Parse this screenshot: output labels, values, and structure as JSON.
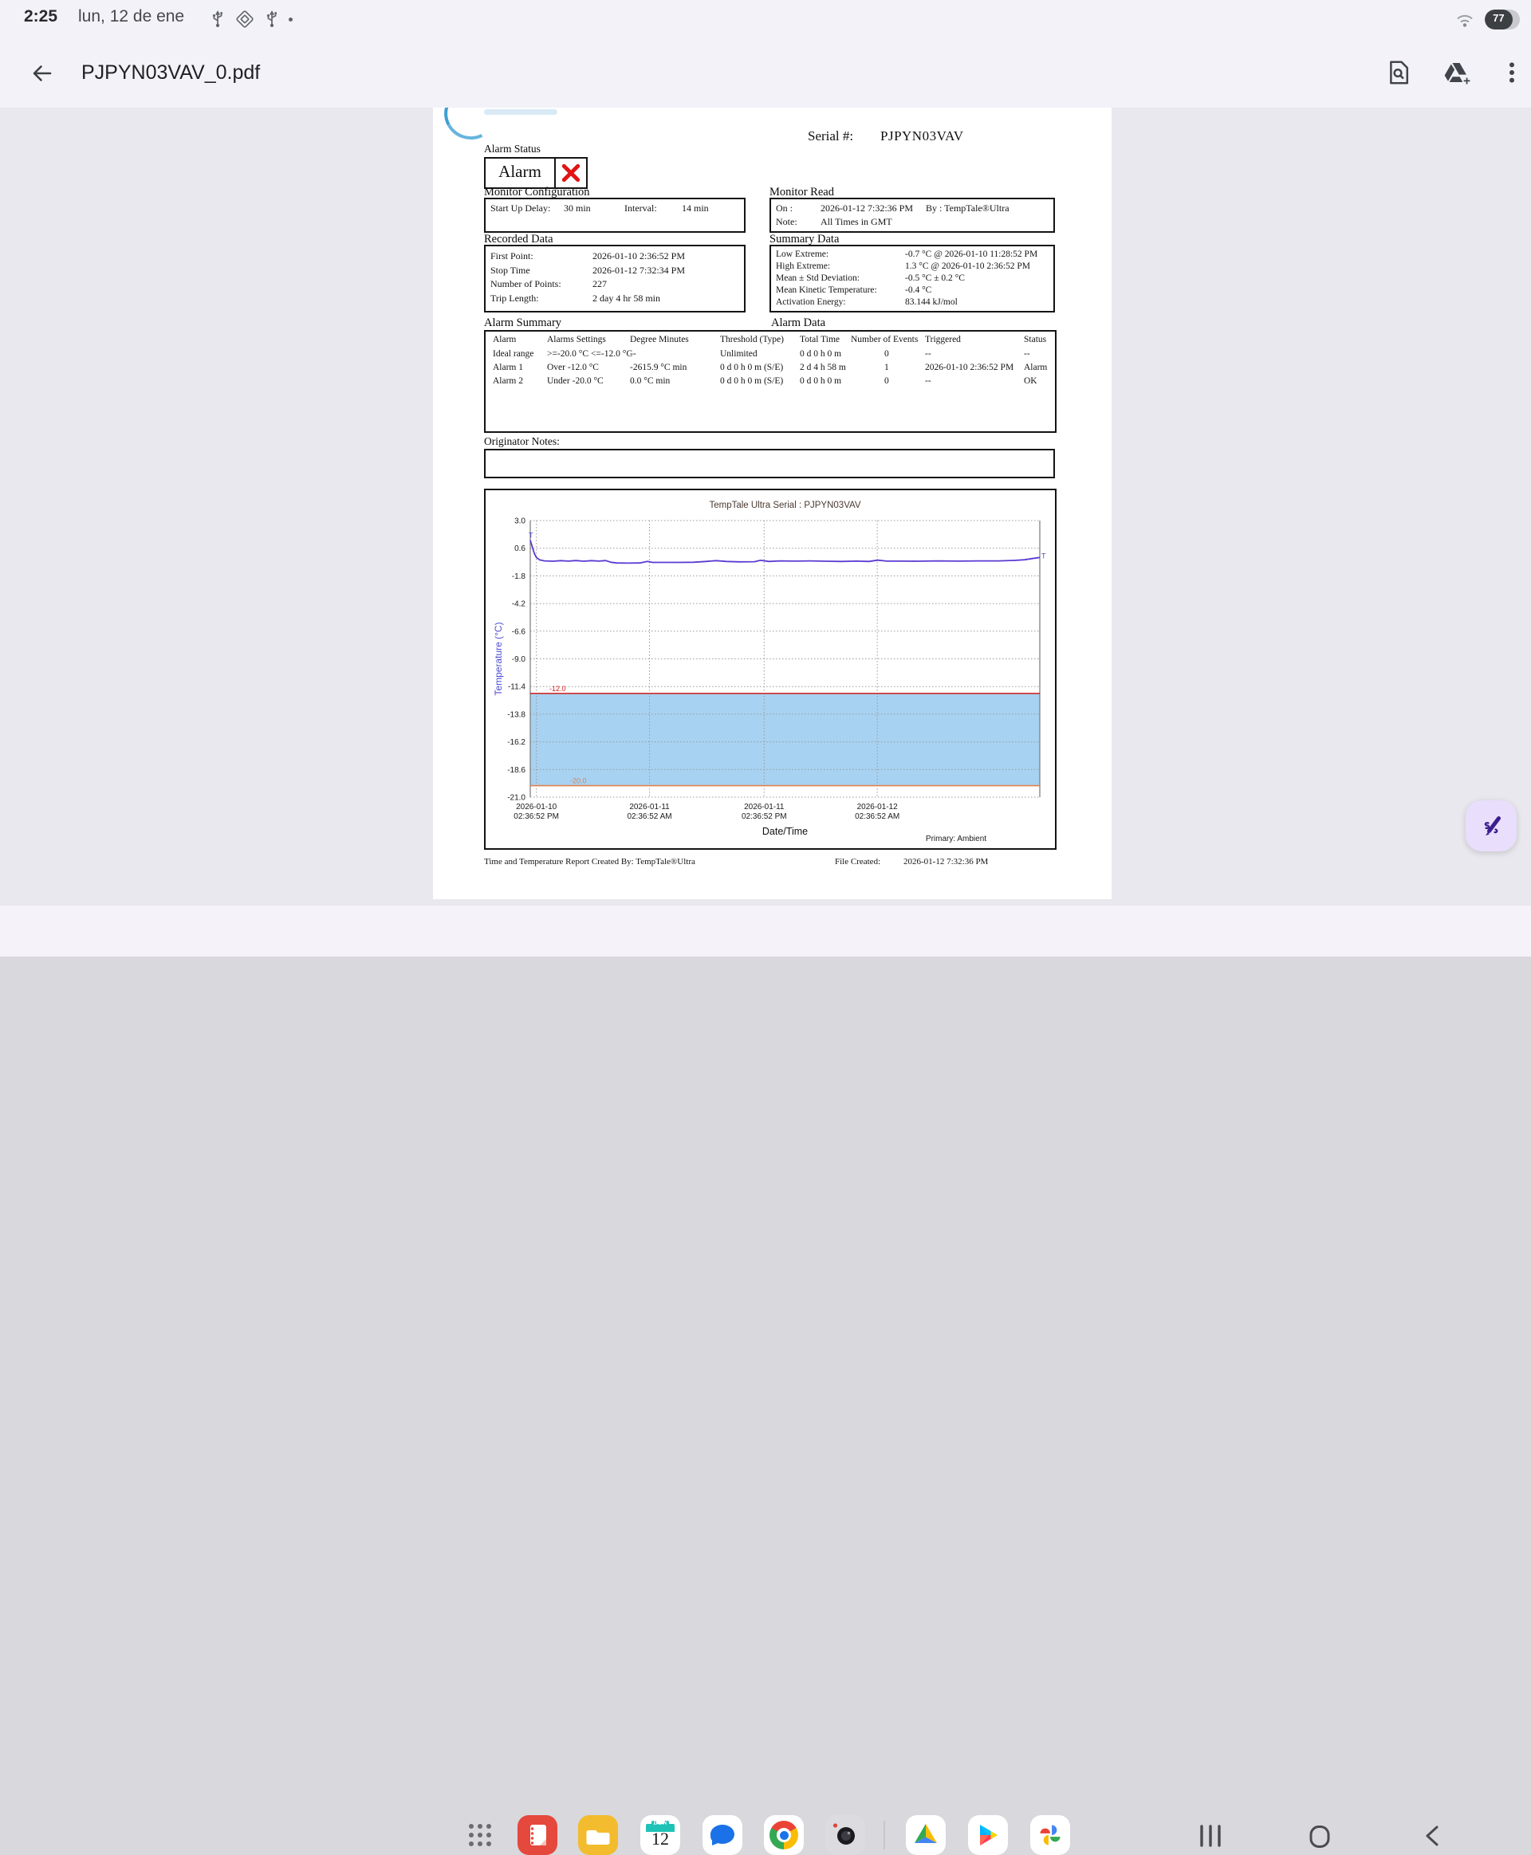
{
  "status_bar": {
    "time": "2:25",
    "date": "lun, 12 de ene",
    "icons": [
      "usb-icon",
      "package-icon",
      "usb-icon",
      "notification-dot"
    ],
    "wifi_icon": "wifi-icon",
    "battery_percent": "77"
  },
  "toolbar": {
    "back_icon": "back-arrow-icon",
    "title": "PJPYN03VAV_0.pdf",
    "actions": [
      "search-in-document-icon",
      "save-to-drive-icon",
      "more-options-icon"
    ]
  },
  "pdf": {
    "serial": {
      "label": "Serial #:",
      "value": "PJPYN03VAV"
    },
    "alarm_status": {
      "heading": "Alarm Status",
      "value": "Alarm",
      "icon": "red-x-icon"
    },
    "monitor_configuration": {
      "title": "Monitor Configuration",
      "fields": [
        {
          "label": "Start Up Delay:",
          "value": "30 min"
        },
        {
          "label": "Interval:",
          "value": "14 min"
        }
      ]
    },
    "monitor_read": {
      "title": "Monitor Read",
      "rows": [
        {
          "label": "On :",
          "value": "2026-01-12  7:32:36 PM",
          "extra": "By :  TempTale®Ultra"
        },
        {
          "label": "Note:",
          "value": "All Times in GMT",
          "extra": ""
        }
      ]
    },
    "recorded_data": {
      "title": "Recorded Data",
      "rows": [
        {
          "label": "First Point:",
          "value": "2026-01-10  2:36:52 PM"
        },
        {
          "label": "Stop Time",
          "value": "2026-01-12  7:32:34 PM"
        },
        {
          "label": "Number of Points:",
          "value": "227"
        },
        {
          "label": "Trip Length:",
          "value": "2 day 4 hr 58 min"
        }
      ]
    },
    "summary_data": {
      "title": "Summary Data",
      "rows": [
        {
          "label": "Low Extreme:",
          "value": "-0.7 °C @ 2026-01-10 11:28:52 PM"
        },
        {
          "label": "High Extreme:",
          "value": "1.3 °C @ 2026-01-10  2:36:52 PM"
        },
        {
          "label": "Mean ± Std Deviation:",
          "value": "-0.5 °C ± 0.2 °C"
        },
        {
          "label": "Mean Kinetic Temperature:",
          "value": "-0.4 °C"
        },
        {
          "label": "Activation Energy:",
          "value": "83.144 kJ/mol"
        }
      ]
    },
    "alarm_table": {
      "left_title": "Alarm Summary",
      "right_title": "Alarm Data",
      "headers": [
        "Alarm",
        "Alarms Settings",
        "Degree Minutes",
        "Threshold (Type)",
        "Total Time",
        "Number of Events",
        "Triggered",
        "Status"
      ],
      "rows": [
        [
          "Ideal range",
          ">=-20.0 °C <=-12.0 °C",
          "--",
          "Unlimited",
          "0 d 0 h 0 m",
          "0",
          "--",
          "--"
        ],
        [
          "Alarm 1",
          "Over -12.0 °C",
          "-2615.9 °C min",
          "0 d 0 h 0 m (S/E)",
          "2 d 4 h 58 m",
          "1",
          "2026-01-10  2:36:52 PM",
          "Alarm"
        ],
        [
          "Alarm 2",
          "Under -20.0 °C",
          "0.0 °C min",
          "0 d 0 h 0 m (S/E)",
          "0 d 0 h 0 m",
          "0",
          "--",
          "OK"
        ]
      ]
    },
    "originator_notes_label": "Originator Notes:",
    "footer": {
      "created_by": "Time and Temperature Report Created By:  TempTale®Ultra",
      "file_created_label": "File Created:",
      "file_created_value": "2026-01-12  7:32:36 PM"
    }
  },
  "chart_data": {
    "type": "line",
    "title": "TempTale Ultra  Serial : PJPYN03VAV",
    "ylabel": "Temperature      (°C)",
    "xlabel": "Date/Time",
    "annotation": "Primary: Ambient",
    "ylim": [
      -21.0,
      3.0
    ],
    "yticks": [
      3.0,
      0.6,
      -1.8,
      -4.2,
      -6.6,
      -9.0,
      -11.4,
      -13.8,
      -16.2,
      -18.6,
      -21.0
    ],
    "xticks": [
      {
        "pos": 0.012,
        "label": [
          "2026-01-10",
          "02:36:52 PM"
        ]
      },
      {
        "pos": 0.234,
        "label": [
          "2026-01-11",
          "02:36:52 AM"
        ]
      },
      {
        "pos": 0.459,
        "label": [
          "2026-01-11",
          "02:36:52 PM"
        ]
      },
      {
        "pos": 0.681,
        "label": [
          "2026-01-12",
          "02:36:52 AM"
        ]
      }
    ],
    "grid": true,
    "ideal_band": {
      "high": -12.0,
      "low": -20.0,
      "fill": "#a8d2f1"
    },
    "thresholds": [
      {
        "value": -12.0,
        "label": "-12.0",
        "color": "#cf1d1d"
      },
      {
        "value": -20.0,
        "label": "-20.0",
        "color": "#e0814f"
      }
    ],
    "series": [
      {
        "name": "Primary: Ambient",
        "color": "#5b3ad2",
        "marker": "T",
        "points": [
          [
            0,
            1.3
          ],
          [
            0.004,
            0.7
          ],
          [
            0.008,
            0.15
          ],
          [
            0.012,
            -0.2
          ],
          [
            0.018,
            -0.4
          ],
          [
            0.028,
            -0.5
          ],
          [
            0.045,
            -0.53
          ],
          [
            0.06,
            -0.48
          ],
          [
            0.075,
            -0.52
          ],
          [
            0.09,
            -0.47
          ],
          [
            0.105,
            -0.53
          ],
          [
            0.12,
            -0.48
          ],
          [
            0.135,
            -0.52
          ],
          [
            0.148,
            -0.47
          ],
          [
            0.158,
            -0.62
          ],
          [
            0.17,
            -0.68
          ],
          [
            0.19,
            -0.69
          ],
          [
            0.215,
            -0.68
          ],
          [
            0.23,
            -0.55
          ],
          [
            0.24,
            -0.63
          ],
          [
            0.26,
            -0.63
          ],
          [
            0.29,
            -0.63
          ],
          [
            0.32,
            -0.62
          ],
          [
            0.345,
            -0.55
          ],
          [
            0.365,
            -0.48
          ],
          [
            0.385,
            -0.55
          ],
          [
            0.41,
            -0.58
          ],
          [
            0.44,
            -0.57
          ],
          [
            0.452,
            -0.45
          ],
          [
            0.468,
            -0.55
          ],
          [
            0.49,
            -0.5
          ],
          [
            0.52,
            -0.52
          ],
          [
            0.55,
            -0.5
          ],
          [
            0.58,
            -0.53
          ],
          [
            0.61,
            -0.55
          ],
          [
            0.64,
            -0.52
          ],
          [
            0.665,
            -0.55
          ],
          [
            0.682,
            -0.44
          ],
          [
            0.7,
            -0.52
          ],
          [
            0.73,
            -0.52
          ],
          [
            0.76,
            -0.53
          ],
          [
            0.8,
            -0.5
          ],
          [
            0.84,
            -0.52
          ],
          [
            0.88,
            -0.5
          ],
          [
            0.92,
            -0.5
          ],
          [
            0.95,
            -0.46
          ],
          [
            0.97,
            -0.4
          ],
          [
            0.985,
            -0.3
          ],
          [
            1,
            -0.2
          ]
        ]
      }
    ]
  },
  "dock": {
    "apps_grid_icon": "apps-grid-icon",
    "apps": [
      "notes",
      "my-files",
      "calendar",
      "messages",
      "chrome",
      "camera",
      "drive",
      "play-store",
      "photos"
    ],
    "calendar": {
      "weekday": "LUN",
      "day": "12"
    },
    "nav": [
      "recents",
      "home",
      "back"
    ]
  },
  "fab": {
    "icon": "pen-annotate-icon"
  }
}
